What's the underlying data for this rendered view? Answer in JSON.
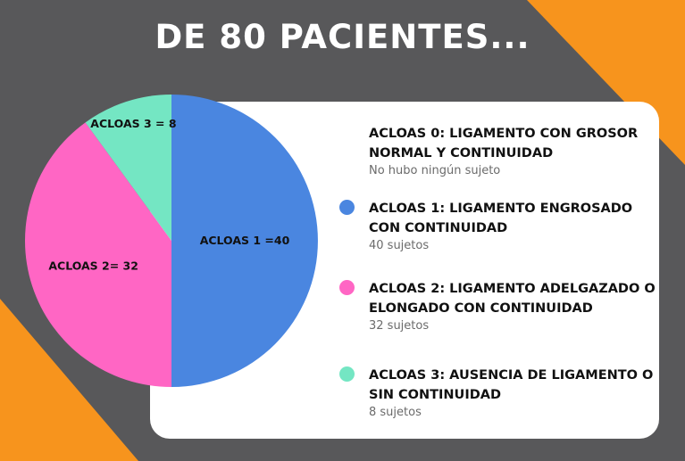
{
  "title": "DE 80 PACIENTES...",
  "colors": {
    "background": "#58585a",
    "accent_orange": "#f7941d",
    "card": "#ffffff",
    "acloas_1": "#4a86e0",
    "acloas_2": "#ff66c4",
    "acloas_3": "#74e6c3"
  },
  "chart_data": {
    "type": "pie",
    "total": 80,
    "slices": [
      {
        "label": "ACLOAS 1 =40",
        "value": 40,
        "color": "#4a86e0"
      },
      {
        "label": "ACLOAS 2= 32",
        "value": 32,
        "color": "#ff66c4"
      },
      {
        "label": "ACLOAS 3 = 8",
        "value": 8,
        "color": "#74e6c3"
      }
    ]
  },
  "legend": [
    {
      "heading": "ACLOAS 0: LIGAMENTO CON GROSOR NORMAL Y CONTINUIDAD",
      "note": "No hubo ningún sujeto",
      "color": ""
    },
    {
      "heading": "ACLOAS 1: LIGAMENTO ENGROSADO CON CONTINUIDAD",
      "note": "40 sujetos",
      "color": "#4a86e0"
    },
    {
      "heading": "ACLOAS 2: LIGAMENTO ADELGAZADO O ELONGADO CON CONTINUIDAD",
      "note": "32 sujetos",
      "color": "#ff66c4"
    },
    {
      "heading": "ACLOAS 3: AUSENCIA DE LIGAMENTO O SIN CONTINUIDAD",
      "note": "8 sujetos",
      "color": "#74e6c3"
    }
  ]
}
